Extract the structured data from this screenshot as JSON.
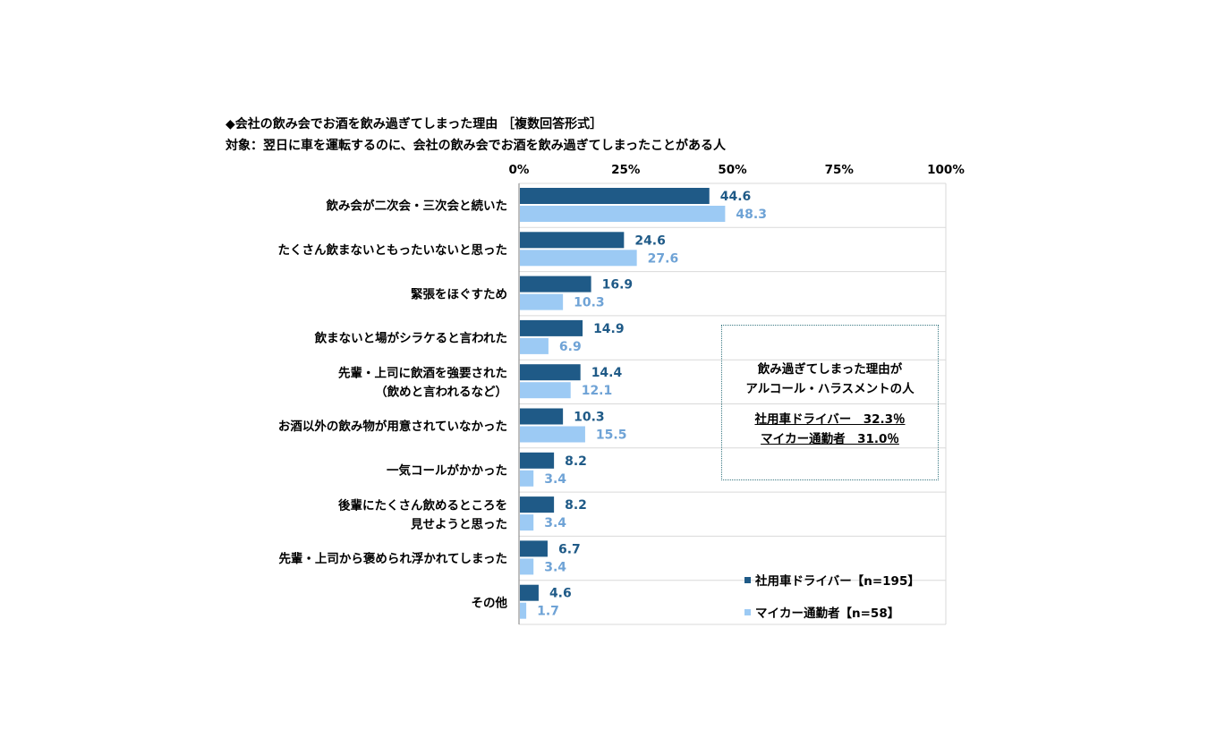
{
  "title_line1": "◆会社の飲み会でお酒を飲み過ぎてしまった理由 ［複数回答形式］",
  "title_line2": "対象：翌日に車を運転するのに、会社の飲み会でお酒を飲み過ぎてしまったことがある人",
  "callout": {
    "heading_line1": "飲み過ぎてしまった理由が",
    "heading_line2": "アルコール・ハラスメントの人",
    "stat_line1": "社用車ドライバー　32.3％",
    "stat_line2": "マイカー通勤者　31.0％"
  },
  "legend": {
    "items": [
      {
        "label": "社用車ドライバー【n=195】",
        "color": "#1f5a87"
      },
      {
        "label": "マイカー通勤者【n=58】",
        "color": "#9ccaf4"
      }
    ]
  },
  "chart_data": {
    "type": "bar",
    "orientation": "horizontal",
    "title": "◆会社の飲み会でお酒を飲み過ぎてしまった理由 ［複数回答形式］",
    "subtitle": "対象：翌日に車を運転するのに、会社の飲み会でお酒を飲み過ぎてしまったことがある人",
    "categories": [
      [
        "飲み会が二次会・三次会と続いた"
      ],
      [
        "たくさん飲まないともったいないと思った"
      ],
      [
        "緊張をほぐすため"
      ],
      [
        "飲まないと場がシラケると言われた"
      ],
      [
        "先輩・上司に飲酒を強要された",
        "（飲めと言われるなど）"
      ],
      [
        "お酒以外の飲み物が用意されていなかった"
      ],
      [
        "一気コールがかかった"
      ],
      [
        "後輩にたくさん飲めるところを",
        "見せようと思った"
      ],
      [
        "先輩・上司から褒められ浮かれてしまった"
      ],
      [
        "その他"
      ]
    ],
    "series": [
      {
        "name": "社用車ドライバー【n=195】",
        "color": "#1f5a87",
        "label_color": "#1f5a87",
        "values": [
          44.6,
          24.6,
          16.9,
          14.9,
          14.4,
          10.3,
          8.2,
          8.2,
          6.7,
          4.6
        ]
      },
      {
        "name": "マイカー通勤者【n=58】",
        "color": "#9ccaf4",
        "label_color": "#6fa3d6",
        "values": [
          48.3,
          27.6,
          10.3,
          6.9,
          12.1,
          15.5,
          3.4,
          3.4,
          3.4,
          1.7
        ]
      }
    ],
    "xlim": [
      0,
      100
    ],
    "ticks": [
      "0%",
      "25%",
      "50%",
      "75%",
      "100%"
    ],
    "tick_values": [
      0,
      25,
      50,
      75,
      100
    ],
    "grid": "horizontal row separators",
    "legend_position": "bottom-right"
  }
}
